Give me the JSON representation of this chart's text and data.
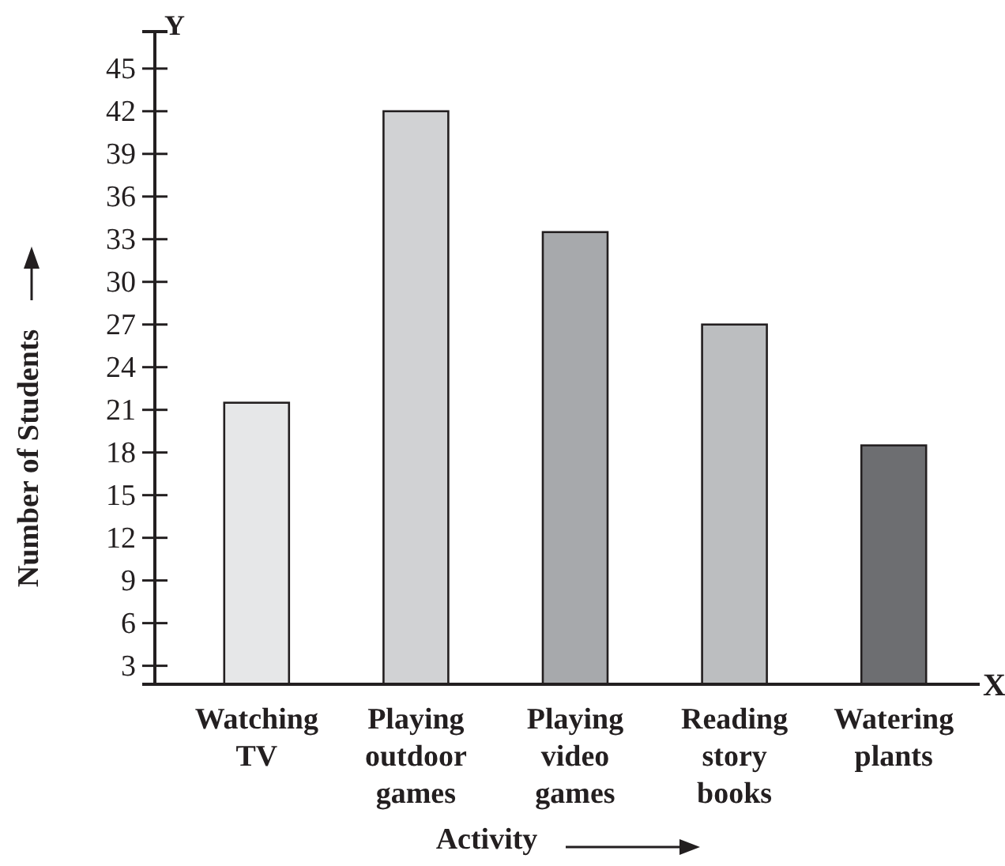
{
  "chart_data": {
    "type": "bar",
    "xlabel": "Activity",
    "ylabel": "Number of Students",
    "categories": [
      "Watching TV",
      "Playing outdoor games",
      "Playing video games",
      "Reading story books",
      "Watering plants"
    ],
    "values": [
      21.5,
      42,
      33.5,
      27,
      18.5
    ],
    "colors": [
      "#e6e7e8",
      "#d1d2d4",
      "#a7a9ac",
      "#bcbec0",
      "#6d6e71"
    ],
    "ylim": [
      1.7,
      47.6
    ],
    "yticks": [
      3,
      6,
      9,
      12,
      15,
      18,
      21,
      24,
      27,
      30,
      33,
      36,
      39,
      42,
      45
    ],
    "annotations": [
      "X",
      "Y"
    ],
    "grid": false
  }
}
